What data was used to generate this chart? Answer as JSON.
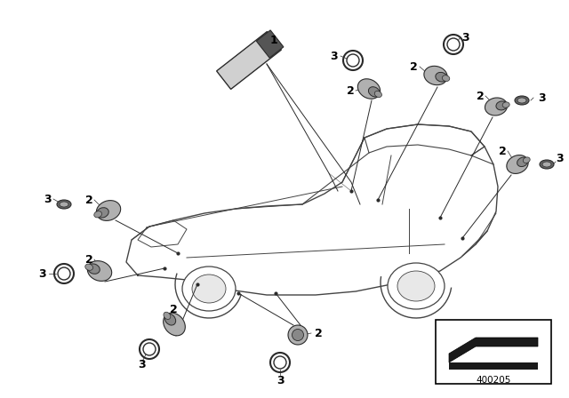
{
  "background_color": "#ffffff",
  "line_color": "#2a2a2a",
  "sensor_color": "#b0b0b0",
  "sensor_dark": "#888888",
  "sensor_darker": "#666666",
  "ring_color": "#555555",
  "diagram_number": "400205",
  "figsize": [
    6.4,
    4.48
  ],
  "dpi": 100
}
